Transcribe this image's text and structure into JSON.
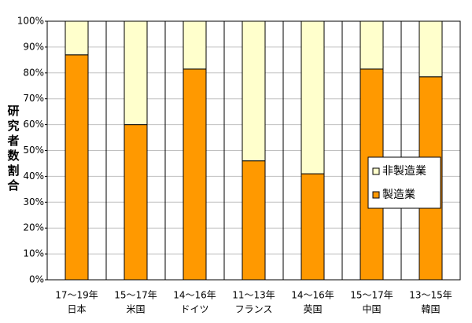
{
  "chart_data": {
    "type": "stacked_bar",
    "y_label": "研究者数割合",
    "categories": [
      [
        "17～19年",
        "日本"
      ],
      [
        "15～17年",
        "米国"
      ],
      [
        "14～16年",
        "ドイツ"
      ],
      [
        "11～13年",
        "フランス"
      ],
      [
        "14～16年",
        "英国"
      ],
      [
        "15～17年",
        "中国"
      ],
      [
        "13～15年",
        "韓国"
      ]
    ],
    "series": [
      {
        "name": "製造業",
        "color": "#ff9900",
        "values": [
          87,
          60,
          81.5,
          46,
          41,
          81.5,
          78.5
        ]
      },
      {
        "name": "非製造業",
        "color": "#ffffcc",
        "values": [
          13,
          40,
          18.5,
          54,
          59,
          18.5,
          21.5
        ]
      }
    ],
    "ylim": [
      0,
      100
    ],
    "yticks": [
      {
        "value": 0,
        "label": "0%"
      },
      {
        "value": 10,
        "label": "10%"
      },
      {
        "value": 20,
        "label": "20%"
      },
      {
        "value": 30,
        "label": "30%"
      },
      {
        "value": 40,
        "label": "40%"
      },
      {
        "value": 50,
        "label": "50%"
      },
      {
        "value": 60,
        "label": "60%"
      },
      {
        "value": 70,
        "label": "70%"
      },
      {
        "value": 80,
        "label": "80%"
      },
      {
        "value": 90,
        "label": "90%"
      },
      {
        "value": 100,
        "label": "100%"
      }
    ],
    "grid": true,
    "legend": "right"
  }
}
